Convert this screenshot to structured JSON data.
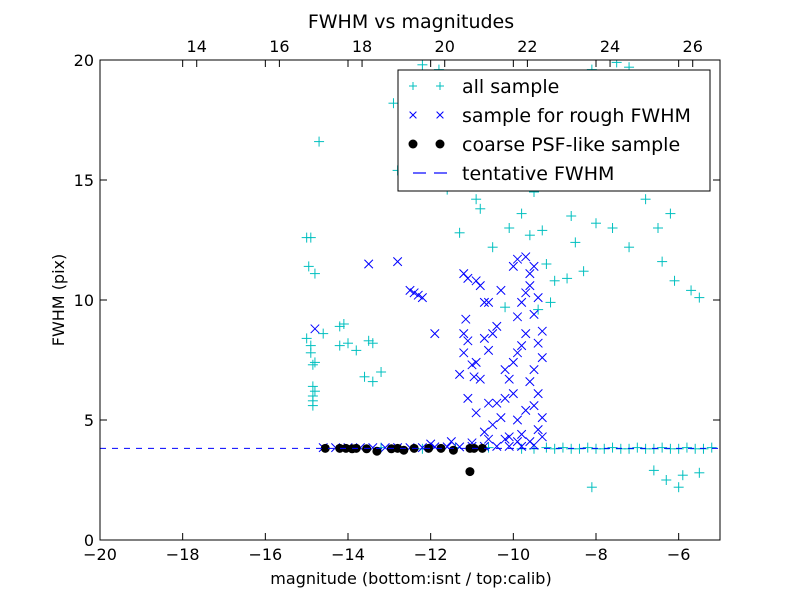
{
  "chart_data": {
    "type": "scatter",
    "title": "FWHM vs magnitudes",
    "xlabel": "magnitude (bottom:isnt / top:calib)",
    "ylabel": "FWHM (pix)",
    "xlim": [
      -20,
      -5
    ],
    "ylim": [
      0,
      20
    ],
    "x_ticks": [
      "−20",
      "−18",
      "−16",
      "−14",
      "−12",
      "−10",
      "−8",
      "−6"
    ],
    "y_ticks": [
      "0",
      "5",
      "10",
      "15",
      "20"
    ],
    "top_ticks": [
      "14",
      "16",
      "18",
      "20",
      "22",
      "24",
      "26"
    ],
    "top_axis_offset": 31.66,
    "grid": false,
    "legend_position": "top-right",
    "tentative_fwhm": 3.82,
    "series": [
      {
        "name": "all sample",
        "marker": "+",
        "color": "#00bfbf",
        "points": [
          [
            -15.0,
            12.6
          ],
          [
            -14.9,
            12.6
          ],
          [
            -14.95,
            11.4
          ],
          [
            -14.8,
            11.1
          ],
          [
            -15.0,
            8.4
          ],
          [
            -14.9,
            8.1
          ],
          [
            -14.9,
            7.8
          ],
          [
            -14.8,
            7.4
          ],
          [
            -14.85,
            7.3
          ],
          [
            -14.85,
            6.4
          ],
          [
            -14.8,
            6.2
          ],
          [
            -14.85,
            6.0
          ],
          [
            -14.85,
            5.8
          ],
          [
            -14.85,
            5.6
          ],
          [
            -14.7,
            16.6
          ],
          [
            -14.6,
            8.6
          ],
          [
            -14.2,
            8.9
          ],
          [
            -14.1,
            9.0
          ],
          [
            -14.2,
            8.1
          ],
          [
            -14.0,
            8.2
          ],
          [
            -13.8,
            7.9
          ],
          [
            -13.5,
            8.3
          ],
          [
            -13.4,
            8.2
          ],
          [
            -13.6,
            6.8
          ],
          [
            -13.4,
            6.6
          ],
          [
            -13.2,
            7.0
          ],
          [
            -12.9,
            18.2
          ],
          [
            -12.6,
            18.6
          ],
          [
            -12.2,
            19.8
          ],
          [
            -11.8,
            19.6
          ],
          [
            -12.8,
            15.4
          ],
          [
            -12.5,
            15.0
          ],
          [
            -11.6,
            14.6
          ],
          [
            -11.2,
            15.6
          ],
          [
            -10.9,
            14.2
          ],
          [
            -10.8,
            13.8
          ],
          [
            -11.3,
            12.8
          ],
          [
            -10.5,
            12.2
          ],
          [
            -10.1,
            13.0
          ],
          [
            -9.8,
            13.6
          ],
          [
            -9.6,
            12.7
          ],
          [
            -9.5,
            14.5
          ],
          [
            -9.3,
            12.9
          ],
          [
            -9.2,
            11.5
          ],
          [
            -9.0,
            10.8
          ],
          [
            -8.8,
            14.9
          ],
          [
            -8.6,
            13.5
          ],
          [
            -8.5,
            12.4
          ],
          [
            -8.3,
            17.6
          ],
          [
            -8.1,
            19.6
          ],
          [
            -7.9,
            16.8
          ],
          [
            -7.7,
            18.9
          ],
          [
            -7.5,
            19.9
          ],
          [
            -7.2,
            19.7
          ],
          [
            -7.0,
            18.2
          ],
          [
            -7.4,
            15.6
          ],
          [
            -7.0,
            16.5
          ],
          [
            -6.8,
            14.2
          ],
          [
            -6.6,
            15.2
          ],
          [
            -6.2,
            13.6
          ],
          [
            -6.5,
            13.0
          ],
          [
            -6.4,
            11.6
          ],
          [
            -6.1,
            10.8
          ],
          [
            -5.7,
            10.4
          ],
          [
            -5.5,
            10.1
          ],
          [
            -7.2,
            12.2
          ],
          [
            -7.6,
            13.0
          ],
          [
            -8.0,
            13.2
          ],
          [
            -8.3,
            11.2
          ],
          [
            -8.7,
            10.9
          ],
          [
            -9.1,
            9.9
          ],
          [
            -9.4,
            9.6
          ],
          [
            -10.2,
            9.7
          ],
          [
            -8.1,
            2.2
          ],
          [
            -6.0,
            2.2
          ],
          [
            -6.6,
            2.9
          ],
          [
            -6.3,
            2.5
          ],
          [
            -5.9,
            2.7
          ],
          [
            -5.5,
            2.8
          ],
          [
            -9.8,
            3.8
          ],
          [
            -9.5,
            3.8
          ],
          [
            -9.2,
            3.85
          ],
          [
            -9.0,
            3.8
          ],
          [
            -8.8,
            3.85
          ],
          [
            -8.6,
            3.8
          ],
          [
            -8.4,
            3.8
          ],
          [
            -8.2,
            3.85
          ],
          [
            -8.0,
            3.8
          ],
          [
            -7.8,
            3.8
          ],
          [
            -7.6,
            3.85
          ],
          [
            -7.4,
            3.8
          ],
          [
            -7.2,
            3.8
          ],
          [
            -7.0,
            3.85
          ],
          [
            -6.8,
            3.8
          ],
          [
            -6.6,
            3.8
          ],
          [
            -6.4,
            3.85
          ],
          [
            -6.2,
            3.8
          ],
          [
            -6.0,
            3.8
          ],
          [
            -5.8,
            3.85
          ],
          [
            -5.6,
            3.8
          ],
          [
            -5.4,
            3.8
          ],
          [
            -5.2,
            3.85
          ],
          [
            -13.2,
            3.85
          ],
          [
            -12.2,
            3.8
          ],
          [
            -11.4,
            3.85
          ],
          [
            -10.6,
            3.85
          ]
        ]
      },
      {
        "name": "sample for rough FWHM",
        "marker": "x",
        "color": "#0000ff",
        "points": [
          [
            -14.8,
            8.8
          ],
          [
            -13.5,
            11.5
          ],
          [
            -12.8,
            11.6
          ],
          [
            -12.5,
            10.4
          ],
          [
            -12.4,
            10.3
          ],
          [
            -12.3,
            10.2
          ],
          [
            -12.2,
            10.1
          ],
          [
            -11.9,
            8.6
          ],
          [
            -11.2,
            11.1
          ],
          [
            -11.1,
            10.9
          ],
          [
            -11.15,
            9.2
          ],
          [
            -11.2,
            8.6
          ],
          [
            -11.1,
            8.3
          ],
          [
            -11.2,
            7.8
          ],
          [
            -11.0,
            7.3
          ],
          [
            -10.9,
            7.4
          ],
          [
            -10.95,
            6.8
          ],
          [
            -10.8,
            6.7
          ],
          [
            -10.7,
            8.4
          ],
          [
            -10.6,
            7.9
          ],
          [
            -10.5,
            8.6
          ],
          [
            -10.4,
            8.9
          ],
          [
            -10.6,
            9.9
          ],
          [
            -10.7,
            9.9
          ],
          [
            -10.3,
            10.4
          ],
          [
            -10.8,
            10.6
          ],
          [
            -10.9,
            10.8
          ],
          [
            -10.6,
            5.7
          ],
          [
            -10.4,
            5.7
          ],
          [
            -10.2,
            5.9
          ],
          [
            -10.0,
            6.1
          ],
          [
            -10.1,
            6.7
          ],
          [
            -10.2,
            7.1
          ],
          [
            -10.0,
            7.4
          ],
          [
            -9.9,
            7.8
          ],
          [
            -9.8,
            8.1
          ],
          [
            -9.7,
            8.6
          ],
          [
            -9.9,
            9.3
          ],
          [
            -9.8,
            9.9
          ],
          [
            -9.7,
            10.3
          ],
          [
            -10.0,
            11.4
          ],
          [
            -9.9,
            11.7
          ],
          [
            -9.7,
            11.8
          ],
          [
            -9.6,
            11.1
          ],
          [
            -9.5,
            11.4
          ],
          [
            -9.6,
            10.6
          ],
          [
            -9.4,
            10.1
          ],
          [
            -9.5,
            9.4
          ],
          [
            -9.3,
            8.7
          ],
          [
            -9.4,
            8.2
          ],
          [
            -9.3,
            7.6
          ],
          [
            -9.5,
            7.1
          ],
          [
            -9.6,
            6.6
          ],
          [
            -9.4,
            6.1
          ],
          [
            -9.5,
            5.6
          ],
          [
            -9.3,
            5.1
          ],
          [
            -9.4,
            4.6
          ],
          [
            -9.3,
            4.3
          ],
          [
            -9.6,
            4.1
          ],
          [
            -9.8,
            4.4
          ],
          [
            -10.1,
            4.3
          ],
          [
            -9.9,
            5.0
          ],
          [
            -9.7,
            5.4
          ],
          [
            -10.3,
            5.1
          ],
          [
            -10.5,
            4.8
          ],
          [
            -10.7,
            4.5
          ],
          [
            -10.9,
            5.3
          ],
          [
            -11.1,
            5.9
          ],
          [
            -11.3,
            6.9
          ],
          [
            -9.5,
            3.95
          ],
          [
            -9.8,
            3.9
          ],
          [
            -10.1,
            3.9
          ],
          [
            -10.4,
            3.9
          ],
          [
            -10.7,
            3.9
          ],
          [
            -11.0,
            3.9
          ],
          [
            -11.3,
            3.88
          ],
          [
            -11.6,
            3.88
          ],
          [
            -11.9,
            3.88
          ],
          [
            -12.2,
            3.85
          ],
          [
            -12.5,
            3.85
          ],
          [
            -12.8,
            3.85
          ],
          [
            -13.1,
            3.85
          ],
          [
            -13.4,
            3.85
          ],
          [
            -13.7,
            3.85
          ],
          [
            -14.0,
            3.85
          ],
          [
            -14.3,
            3.85
          ],
          [
            -14.6,
            3.85
          ],
          [
            -12.0,
            4.0
          ],
          [
            -11.5,
            4.1
          ],
          [
            -11.0,
            4.05
          ],
          [
            -10.6,
            4.2
          ],
          [
            -10.2,
            4.2
          ],
          [
            -9.9,
            4.1
          ]
        ]
      },
      {
        "name": "coarse PSF-like sample",
        "marker": "o",
        "color": "#000000",
        "points": [
          [
            -14.55,
            3.82
          ],
          [
            -14.2,
            3.82
          ],
          [
            -14.05,
            3.82
          ],
          [
            -13.9,
            3.8
          ],
          [
            -13.8,
            3.82
          ],
          [
            -13.55,
            3.8
          ],
          [
            -13.3,
            3.7
          ],
          [
            -12.95,
            3.8
          ],
          [
            -12.8,
            3.82
          ],
          [
            -12.65,
            3.74
          ],
          [
            -12.4,
            3.82
          ],
          [
            -12.05,
            3.82
          ],
          [
            -11.75,
            3.82
          ],
          [
            -11.45,
            3.74
          ],
          [
            -11.05,
            3.82
          ],
          [
            -10.95,
            3.82
          ],
          [
            -10.75,
            3.82
          ],
          [
            -11.05,
            2.85
          ]
        ]
      }
    ],
    "reference_line": {
      "name": "tentative FWHM",
      "style": "dashed",
      "color": "#0000ff"
    }
  }
}
